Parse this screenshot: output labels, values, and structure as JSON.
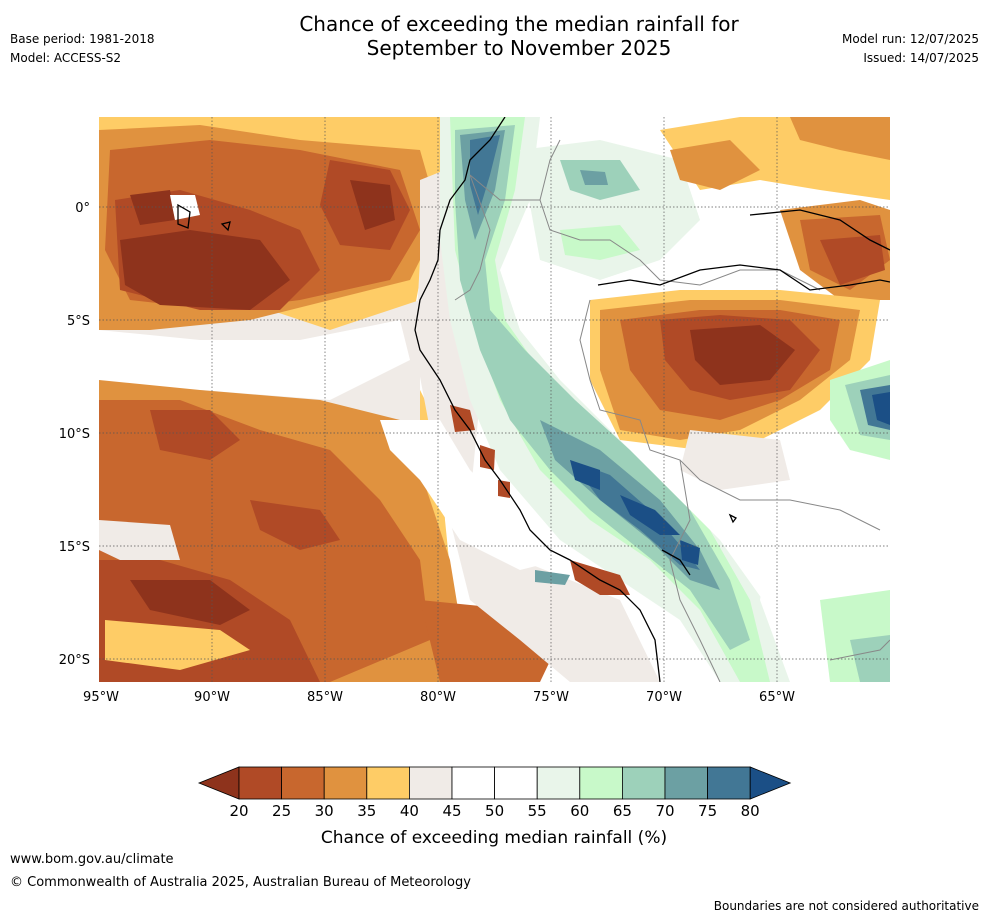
{
  "title": {
    "line1": "Chance of exceeding the median rainfall for",
    "line2": "September to November 2025"
  },
  "meta": {
    "base_period": "Base period: 1981-2018",
    "model": "Model: ACCESS-S2",
    "model_run": "Model run: 12/07/2025",
    "issued": "Issued: 14/07/2025"
  },
  "map": {
    "lat_ticks": [
      "0°",
      "5°S",
      "10°S",
      "15°S",
      "20°S"
    ],
    "lon_ticks": [
      "95°W",
      "90°W",
      "85°W",
      "80°W",
      "75°W",
      "70°W",
      "65°W"
    ],
    "grid_lines": true,
    "region": "Western South America and eastern Pacific (Ecuador, Peru, Bolivia, western Brazil)"
  },
  "colorbar": {
    "label": "Chance of exceeding median rainfall (%)",
    "ticks": [
      "20",
      "25",
      "30",
      "35",
      "40",
      "45",
      "50",
      "55",
      "60",
      "65",
      "70",
      "75",
      "80"
    ],
    "colors": [
      "#8e331c",
      "#b04a26",
      "#c8672e",
      "#e0923f",
      "#fecc66",
      "#f0ebe7",
      "#ffffff",
      "#ffffff",
      "#e9f5ea",
      "#c8f9c9",
      "#9dd1ba",
      "#6ca0a3",
      "#427795",
      "#1b4f86"
    ]
  },
  "footer": {
    "url": "www.bom.gov.au/climate",
    "copyright": "© Commonwealth of Australia 2025, Australian Bureau of Meteorology",
    "note": "Boundaries are not considered authoritative"
  }
}
